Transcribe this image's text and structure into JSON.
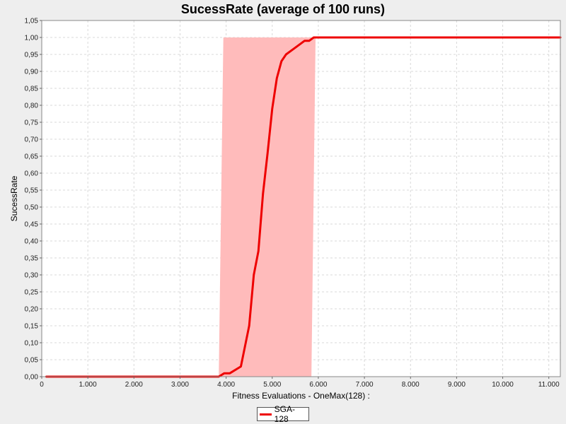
{
  "chart_data": {
    "type": "line",
    "title": "SucessRate (average of 100 runs)",
    "xlabel": "Fitness Evaluations - OneMax(128) :",
    "ylabel": "SucessRate",
    "xlim": [
      0,
      11250
    ],
    "ylim": [
      0,
      1.05
    ],
    "x_ticks": [
      0,
      1000,
      2000,
      3000,
      4000,
      5000,
      6000,
      7000,
      8000,
      9000,
      10000,
      11000
    ],
    "x_tick_labels": [
      "0",
      "1.000",
      "2.000",
      "3.000",
      "4.000",
      "5.000",
      "6.000",
      "7.000",
      "8.000",
      "9.000",
      "10.000",
      "11.000"
    ],
    "y_ticks": [
      0,
      0.05,
      0.1,
      0.15,
      0.2,
      0.25,
      0.3,
      0.35,
      0.4,
      0.45,
      0.5,
      0.55,
      0.6,
      0.65,
      0.7,
      0.75,
      0.8,
      0.85,
      0.9,
      0.95,
      1.0,
      1.05
    ],
    "y_tick_labels": [
      "0,00",
      "0,05",
      "0,10",
      "0,15",
      "0,20",
      "0,25",
      "0,30",
      "0,35",
      "0,40",
      "0,45",
      "0,50",
      "0,55",
      "0,60",
      "0,65",
      "0,70",
      "0,75",
      "0,80",
      "0,85",
      "0,90",
      "0,95",
      "1,00",
      "1,05"
    ],
    "grid": true,
    "legend_position": "bottom-center",
    "series": [
      {
        "name": "SGA-128",
        "color": "#ee0000",
        "x": [
          100,
          3840,
          3960,
          4080,
          4320,
          4500,
          4600,
          4700,
          4800,
          4900,
          5000,
          5100,
          5200,
          5300,
          5500,
          5700,
          5800,
          5900,
          6000,
          11250
        ],
        "y": [
          0,
          0,
          0.01,
          0.01,
          0.03,
          0.15,
          0.3,
          0.37,
          0.54,
          0.66,
          0.79,
          0.88,
          0.93,
          0.95,
          0.97,
          0.99,
          0.99,
          1.0,
          1.0,
          1.0
        ]
      }
    ],
    "band": {
      "color": "#ffbbbb",
      "upper_x": [
        3840,
        3940,
        5940
      ],
      "upper_y": [
        0,
        1.0,
        1.0
      ],
      "lower_x": [
        3840,
        5850,
        5940
      ],
      "lower_y": [
        0,
        0,
        1.0
      ]
    }
  }
}
